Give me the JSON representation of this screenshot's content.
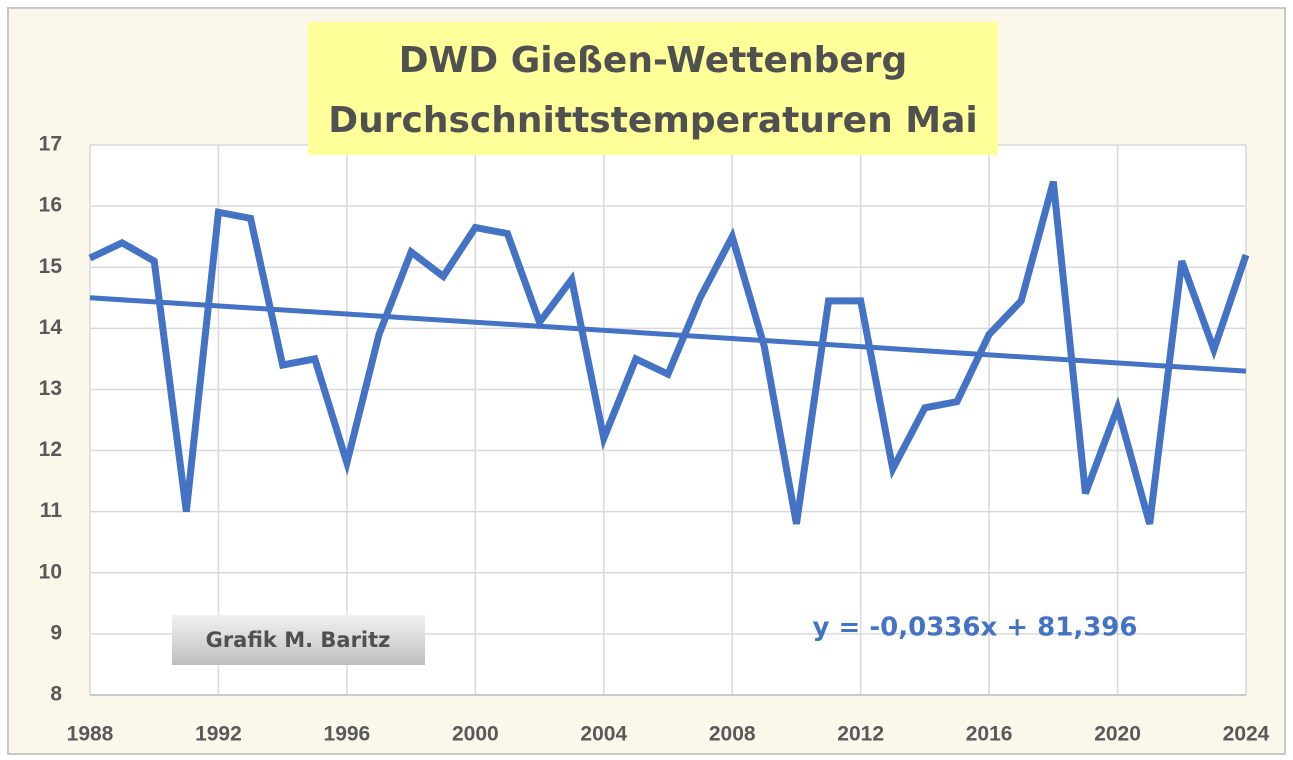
{
  "chart_data": {
    "type": "line",
    "title": [
      "DWD Gießen-Wettenberg",
      "Durchschnittstemperaturen Mai"
    ],
    "x": [
      1988,
      1989,
      1990,
      1991,
      1992,
      1993,
      1994,
      1995,
      1996,
      1997,
      1998,
      1999,
      2000,
      2001,
      2002,
      2003,
      2004,
      2005,
      2006,
      2007,
      2008,
      2009,
      2010,
      2011,
      2012,
      2013,
      2014,
      2015,
      2016,
      2017,
      2018,
      2019,
      2020,
      2021,
      2022,
      2023,
      2024
    ],
    "series": [
      {
        "color": "#4472c4",
        "values": [
          15.15,
          15.4,
          15.1,
          11.0,
          15.9,
          15.8,
          13.4,
          13.5,
          11.8,
          13.9,
          15.25,
          14.85,
          15.65,
          15.55,
          14.1,
          14.8,
          12.2,
          13.5,
          13.25,
          14.5,
          15.5,
          13.7,
          10.8,
          14.45,
          14.45,
          11.7,
          12.7,
          12.8,
          13.9,
          14.45,
          16.4,
          11.3,
          12.7,
          10.8,
          15.1,
          13.65,
          15.2
        ]
      },
      {
        "color": "#4472c4",
        "x": [
          1988,
          2024
        ],
        "values": [
          14.5,
          13.3
        ]
      }
    ],
    "annotations": [
      "Grafik M. Baritz",
      "y = -0,0336x + 81,396"
    ],
    "xlim": [
      1988,
      2024
    ],
    "xticks": [
      1988,
      1992,
      1996,
      2000,
      2004,
      2008,
      2012,
      2016,
      2020,
      2024
    ],
    "ylim": [
      8,
      17
    ],
    "yticks": [
      8,
      9,
      10,
      11,
      12,
      13,
      14,
      15,
      16,
      17
    ],
    "grid": true
  }
}
